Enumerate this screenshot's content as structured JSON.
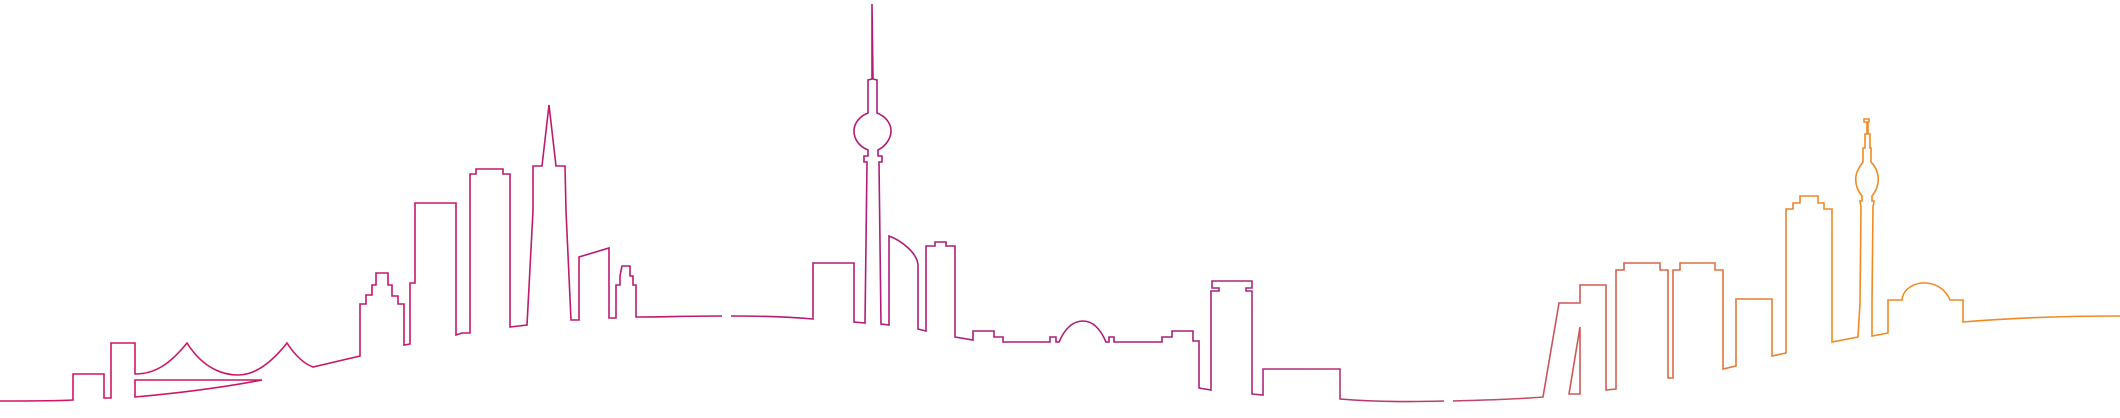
{
  "illustration": {
    "subject": "city-skyline-line-art",
    "segments": [
      {
        "id": "left",
        "color": "#d6145f"
      },
      {
        "id": "center",
        "color": "#a51e7d"
      },
      {
        "id": "right",
        "color": "#f08a24"
      }
    ],
    "gradient": {
      "stops": [
        "#d6145f",
        "#b51c74",
        "#a51e7d",
        "#c2456a",
        "#f08a24"
      ]
    }
  }
}
